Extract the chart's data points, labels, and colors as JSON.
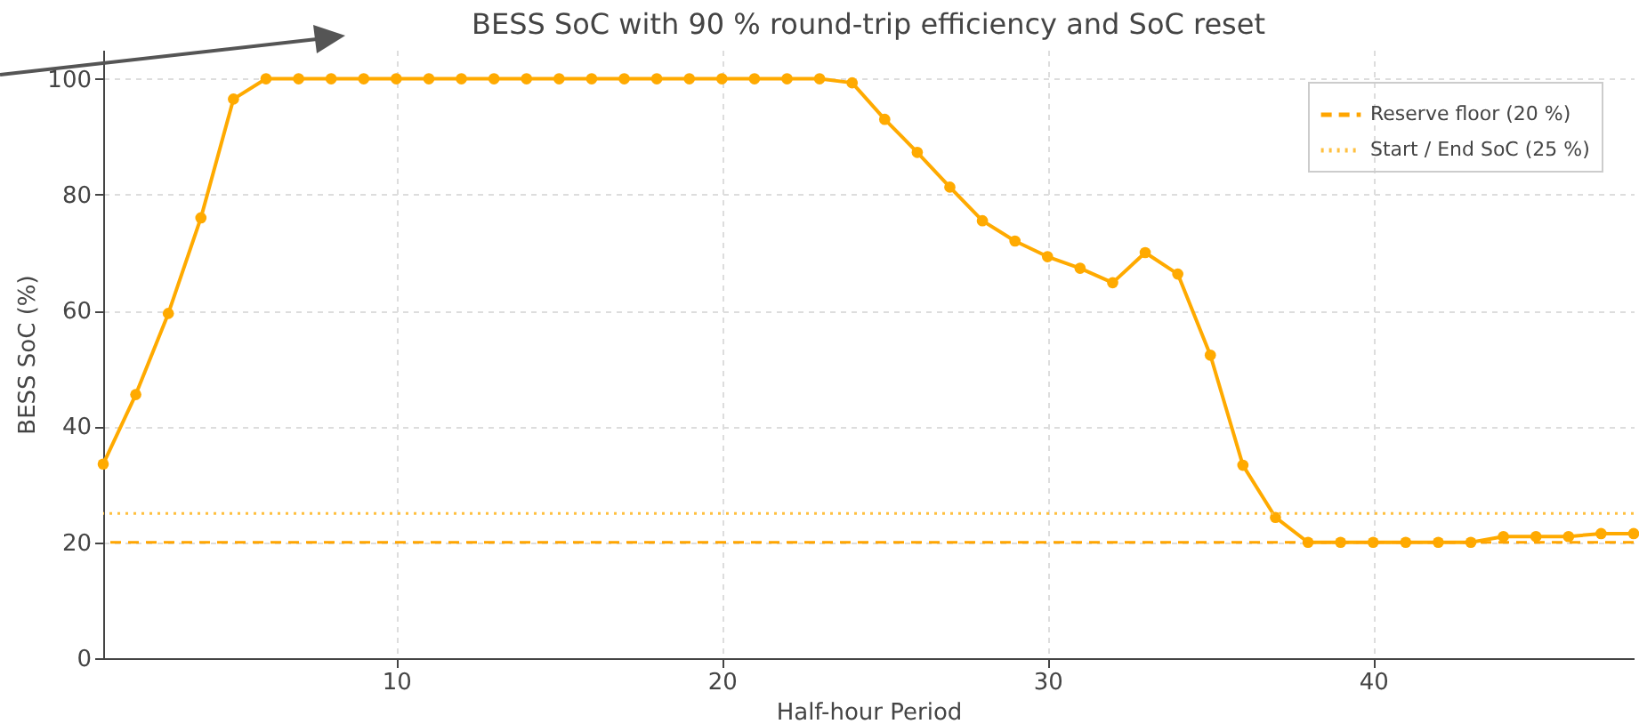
{
  "chart_data": {
    "type": "line",
    "title": "BESS SoC with 90 % round-trip efficiency and SoC reset",
    "xlabel": "Half-hour Period",
    "ylabel": "BESS SoC (%)",
    "x": [
      1,
      2,
      3,
      4,
      5,
      6,
      7,
      8,
      9,
      10,
      11,
      12,
      13,
      14,
      15,
      16,
      17,
      18,
      19,
      20,
      21,
      22,
      23,
      24,
      25,
      26,
      27,
      28,
      29,
      30,
      31,
      32,
      33,
      34,
      35,
      36,
      37,
      38,
      39,
      40,
      41,
      42,
      43,
      44,
      45,
      46,
      47,
      48
    ],
    "series": [
      {
        "color": "#ffaa00",
        "values": [
          33.5,
          45.5,
          59.5,
          76,
          96.5,
          100,
          100,
          100,
          100,
          100,
          100,
          100,
          100,
          100,
          100,
          100,
          100,
          100,
          100,
          100,
          100,
          100,
          100,
          99.3,
          93,
          87.3,
          81.3,
          75.5,
          72,
          69.3,
          67.3,
          64.8,
          70,
          66.3,
          52.3,
          33.3,
          24.3,
          20,
          20,
          20,
          20,
          20,
          20,
          21,
          21,
          21,
          21.5,
          21.5
        ]
      }
    ],
    "xlim": [
      1,
      48
    ],
    "ylim": [
      0,
      105
    ],
    "xticks": [
      10,
      20,
      30,
      40
    ],
    "yticks": [
      0,
      20,
      40,
      60,
      80,
      100
    ],
    "ref_lines": [
      {
        "axis": "y",
        "value": 20,
        "label": "Reserve floor (20 %)",
        "color": "#ffa500",
        "line_style": "dashed"
      },
      {
        "axis": "y",
        "value": 25,
        "label": "Start / End SoC (25 %)",
        "color": "#ffc040",
        "line_style": "dotted"
      }
    ],
    "grid": true,
    "legend": "top right",
    "marker": "circle",
    "line_style": "solid"
  }
}
